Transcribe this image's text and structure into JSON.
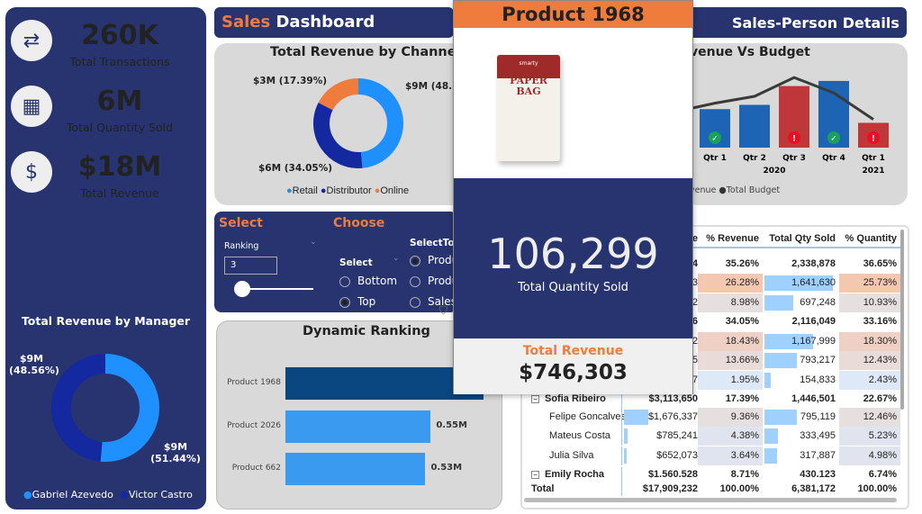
{
  "left_panel": {
    "kpis": [
      {
        "value": "260K",
        "label": "Total Transactions",
        "icon": "handshake-exchange-icon"
      },
      {
        "value": "6M",
        "label": "Total Quantity Sold",
        "icon": "boxes-hand-icon"
      },
      {
        "value": "$18M",
        "label": "Total Revenue",
        "icon": "money-hand-icon"
      }
    ],
    "manager_chart": {
      "title": "Total Revenue by Manager",
      "slices": [
        {
          "name": "Gabriel Azevedo",
          "label": "$9M (51.44%)",
          "value": 51.44,
          "color": "#1e90ff"
        },
        {
          "name": "Victor Castro",
          "label": "$9M (48.56%)",
          "value": 48.56,
          "color": "#1428a0"
        }
      ],
      "label_left_value": "$9M",
      "label_left_pct": "(48.56%)",
      "label_right_value": "$9M",
      "label_right_pct": "(51.44%)"
    }
  },
  "header": {
    "title_accent": "Sales",
    "title_rest": "Dashboard",
    "right_title": "Sales-Person Details"
  },
  "channel_chart": {
    "title": "Total Revenue by Channel",
    "labels": {
      "online": "$3M (17.39%)",
      "retail": "$9M (48.5",
      "distributor": "$6M (34.05%)"
    },
    "slices": [
      {
        "name": "Retail",
        "value": 48.56,
        "color": "#1e90ff"
      },
      {
        "name": "Distributor",
        "value": 34.05,
        "color": "#1428a0"
      },
      {
        "name": "Online",
        "value": 17.39,
        "color": "#ef7b3c"
      }
    ]
  },
  "select_panel": {
    "title": "Select",
    "ranking_label": "Ranking",
    "ranking_value": "3",
    "ranking_slider_value": 3,
    "choose_title": "Choose",
    "select_label": "Select",
    "options": [
      "Bottom",
      "Top"
    ],
    "selected": "Top",
    "select_to_label": "SelectToF",
    "to_options": [
      "Produ",
      "Produ",
      "Sales"
    ]
  },
  "ranking_chart": {
    "title": "Dynamic Ranking",
    "categories": [
      "Product 1968",
      "Product 2026",
      "Product 662"
    ],
    "values": [
      0.75,
      0.55,
      0.53
    ],
    "value_labels": [
      "",
      "0.55M",
      "0.53M"
    ]
  },
  "popup": {
    "product": "Product 1968",
    "image_text": "PAPER BAG",
    "image_brand": "smarty",
    "qty_value": "106,299",
    "qty_label": "Total Quantity Sold",
    "rev_label": "Total Revenue",
    "rev_value": "$746,303"
  },
  "budget_chart": {
    "title": "venue Vs Budget",
    "quarters": [
      "Qtr 1",
      "Qtr 2",
      "Qtr 3",
      "Qtr 4",
      "Qtr 1"
    ],
    "years": [
      "2020",
      "2021"
    ],
    "revenue": [
      0.45,
      0.5,
      0.72,
      0.78,
      0.29
    ],
    "budget": [
      0.52,
      0.6,
      0.82,
      0.64,
      0.33
    ],
    "status": [
      "ok",
      "",
      "alert",
      "ok",
      "alert"
    ],
    "legend": [
      "venue",
      "Total Budget"
    ]
  },
  "table": {
    "headers": [
      "e",
      "% Revenue",
      "Total Qty Sold",
      "% Quantity"
    ],
    "rows": [
      {
        "name": "",
        "rev": "4",
        "prev": "35.26%",
        "qty": "2,338,878",
        "pqty": "36.65%",
        "bold": true,
        "qbar": 0
      },
      {
        "name": "",
        "rev": "3",
        "prev": "26.28%",
        "qty": "1,641,630",
        "pqty": "25.73%",
        "qbar": 1,
        "bg": "#f4c7b0"
      },
      {
        "name": "",
        "rev": "2",
        "prev": "8.98%",
        "qty": "697,248",
        "pqty": "10.93%",
        "qbar": 0.42,
        "bg": "#e6dfe0"
      },
      {
        "name": "",
        "rev": "6",
        "prev": "34.05%",
        "qty": "2,116,049",
        "pqty": "33.16%",
        "bold": true,
        "qbar": 0
      },
      {
        "name": "",
        "rev": "2",
        "prev": "18.43%",
        "qty": "1,167,999",
        "pqty": "18.30%",
        "qbar": 0.71,
        "bg": "#efd0c5"
      },
      {
        "name": "",
        "rev": "5",
        "prev": "13.66%",
        "qty": "793,217",
        "pqty": "12.43%",
        "qbar": 0.48,
        "bg": "#e9dbd8"
      },
      {
        "name": "",
        "rev": "7",
        "prev": "1.95%",
        "qty": "154,833",
        "pqty": "2.43%",
        "qbar": 0.09,
        "bg": "#dde9f7"
      },
      {
        "name": "Sofia Ribeiro",
        "rev": "$3,113,650",
        "prev": "17.39%",
        "qty": "1,446,501",
        "pqty": "22.67%",
        "bold": true,
        "qbar": 0,
        "toggle": true
      },
      {
        "name": "Felipe Goncalves",
        "rev": "$1,676,337",
        "prev": "9.36%",
        "qty": "795,119",
        "pqty": "12.46%",
        "qbar": 0.48,
        "rbar": 0.95,
        "bg": "#e6dfe0"
      },
      {
        "name": "Mateus Costa",
        "rev": "$785,241",
        "prev": "4.38%",
        "qty": "333,495",
        "pqty": "5.23%",
        "qbar": 0.2,
        "rbar": 0.15,
        "bg": "#dfe4ee"
      },
      {
        "name": "Julia Silva",
        "rev": "$652,073",
        "prev": "3.64%",
        "qty": "317,887",
        "pqty": "4.98%",
        "qbar": 0.19,
        "rbar": 0.12,
        "bg": "#dfe4ee"
      },
      {
        "name": "Emily Rocha",
        "rev": "$1.560.528",
        "prev": "8.71%",
        "qty": "430.123",
        "pqty": "6.74%",
        "bold": true,
        "qbar": 0,
        "toggle": true
      },
      {
        "name": "Total",
        "rev": "$17,909,232",
        "prev": "100.00%",
        "qty": "6,381,172",
        "pqty": "100.00%",
        "bold": true,
        "qbar": 0
      }
    ]
  }
}
